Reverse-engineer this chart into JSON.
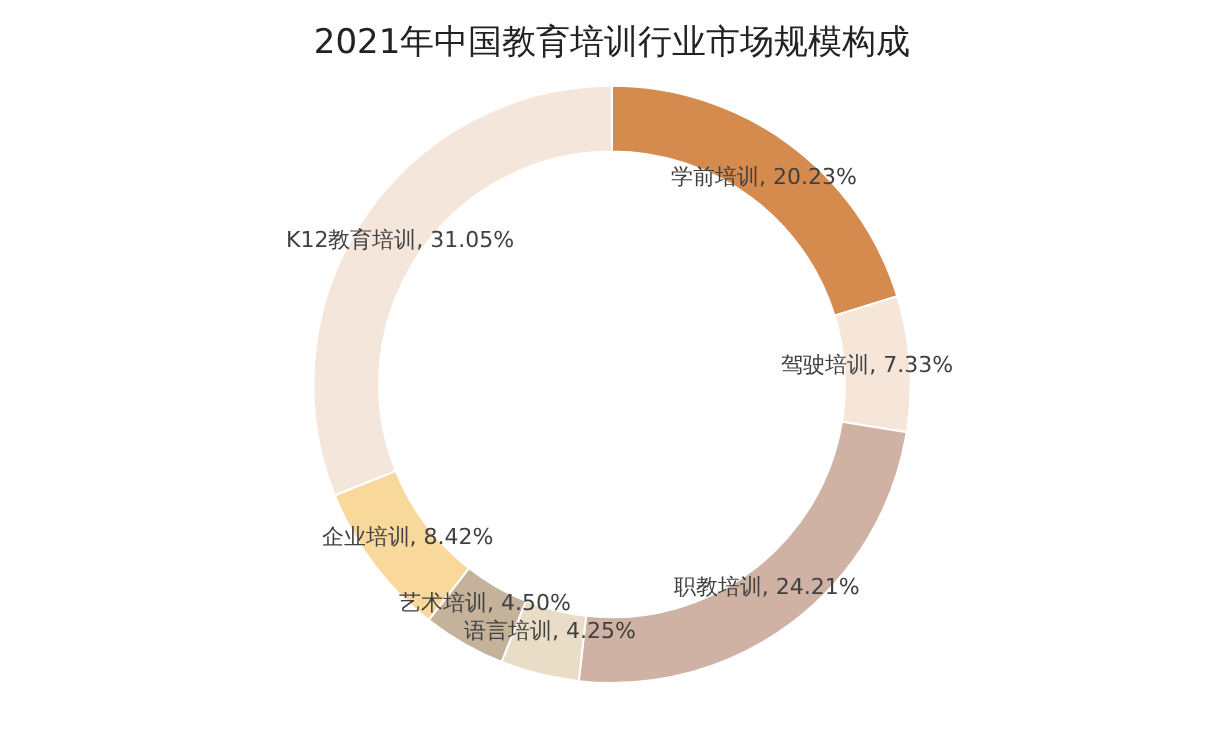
{
  "chart_data": {
    "type": "donut",
    "title": "2021年中国教育培训行业市场规模构成",
    "categories": [
      "学前培训",
      "驾驶培训",
      "职教培训",
      "语言培训",
      "艺术培训",
      "企业培训",
      "K12教育培训"
    ],
    "values": [
      20.23,
      7.33,
      24.21,
      4.25,
      4.5,
      8.42,
      31.05
    ],
    "value_labels": [
      "20.23%",
      "7.33%",
      "24.21%",
      "4.25%",
      "4.50%",
      "8.42%",
      "31.05%"
    ],
    "colors": [
      "#d58b4d",
      "#f6e6d9",
      "#cfb2a4",
      "#e9ddc8",
      "#c4b29a",
      "#f9d99b",
      "#f5e6dc"
    ],
    "legend": false
  }
}
